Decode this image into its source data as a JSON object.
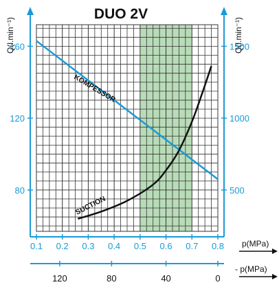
{
  "chart_data": {
    "type": "line",
    "title": "DUO 2V",
    "y_left_label": "Q(l.min⁻¹)",
    "y_right_label": "Q(l.min⁻¹)",
    "x_label": "p(MPa)",
    "x2_label": "- p(MPa)",
    "x_range": [
      0.1,
      0.8
    ],
    "y_left_range": [
      57,
      172
    ],
    "y_left_ticks": [
      80,
      120,
      160
    ],
    "y_right_ticks": [
      500,
      1000,
      1500
    ],
    "x_ticks": [
      0.1,
      0.2,
      0.3,
      0.4,
      0.5,
      0.6,
      0.7,
      0.8
    ],
    "x_ticks_labels": [
      "0.1",
      "0.2",
      "0.3",
      "0.4",
      "0.5",
      "0.6",
      "0.7",
      "0.8"
    ],
    "x2_ticks": [
      120,
      80,
      40,
      0
    ],
    "x2_tick_positions_mpa": [
      0.19,
      0.39,
      0.6,
      0.8
    ],
    "highlight_band": {
      "x_from": 0.5,
      "x_to": 0.7,
      "color": "#b9dcb8"
    },
    "grid": true,
    "series": [
      {
        "name": "KOMPESSOR",
        "color": "#1a9ad6",
        "points": [
          [
            0.1,
            163
          ],
          [
            0.8,
            86
          ]
        ]
      },
      {
        "name": "SUCTION",
        "color": "#111111",
        "points": [
          [
            0.26,
            64
          ],
          [
            0.35,
            68
          ],
          [
            0.45,
            74
          ],
          [
            0.55,
            83
          ],
          [
            0.6,
            91
          ],
          [
            0.65,
            102
          ],
          [
            0.7,
            118
          ],
          [
            0.74,
            134
          ],
          [
            0.775,
            149
          ]
        ]
      }
    ]
  }
}
